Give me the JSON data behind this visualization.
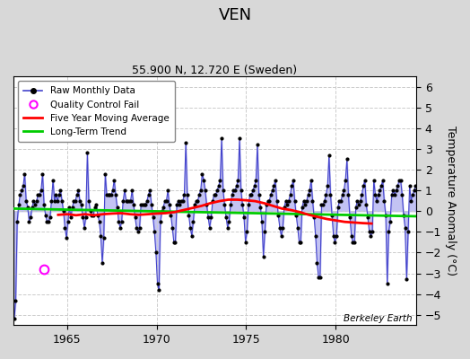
{
  "title": "VEN",
  "subtitle": "55.900 N, 12.720 E (Sweden)",
  "ylabel": "Temperature Anomaly (°C)",
  "watermark": "Berkeley Earth",
  "ylim": [
    -5.5,
    6.5
  ],
  "yticks": [
    -5,
    -4,
    -3,
    -2,
    -1,
    0,
    1,
    2,
    3,
    4,
    5,
    6
  ],
  "xlim": [
    1962.0,
    1984.5
  ],
  "xticks": [
    1965,
    1970,
    1975,
    1980
  ],
  "bg_color": "#d8d8d8",
  "plot_bg": "#ffffff",
  "raw_line_color": "#4444cc",
  "raw_fill_color": "#aaaaee",
  "raw_dot_color": "#000000",
  "moving_avg_color": "#ff0000",
  "trend_color": "#00cc00",
  "qc_color": "#ff00ff",
  "raw_monthly": [
    [
      1962.042,
      -5.2
    ],
    [
      1962.125,
      -4.3
    ],
    [
      1962.208,
      -0.5
    ],
    [
      1962.292,
      0.3
    ],
    [
      1962.375,
      0.8
    ],
    [
      1962.458,
      1.0
    ],
    [
      1962.542,
      1.2
    ],
    [
      1962.625,
      1.8
    ],
    [
      1962.708,
      0.5
    ],
    [
      1962.792,
      0.2
    ],
    [
      1962.875,
      -0.5
    ],
    [
      1962.958,
      -0.3
    ],
    [
      1963.042,
      0.2
    ],
    [
      1963.125,
      0.5
    ],
    [
      1963.208,
      0.3
    ],
    [
      1963.292,
      0.5
    ],
    [
      1963.375,
      0.8
    ],
    [
      1963.458,
      0.8
    ],
    [
      1963.542,
      1.0
    ],
    [
      1963.625,
      1.8
    ],
    [
      1963.708,
      0.3
    ],
    [
      1963.792,
      -0.2
    ],
    [
      1963.875,
      -0.5
    ],
    [
      1963.958,
      -0.5
    ],
    [
      1964.042,
      -0.3
    ],
    [
      1964.125,
      0.5
    ],
    [
      1964.208,
      1.5
    ],
    [
      1964.292,
      0.5
    ],
    [
      1964.375,
      0.8
    ],
    [
      1964.458,
      0.5
    ],
    [
      1964.542,
      0.8
    ],
    [
      1964.625,
      1.0
    ],
    [
      1964.708,
      0.5
    ],
    [
      1964.792,
      0.0
    ],
    [
      1964.875,
      -0.8
    ],
    [
      1964.958,
      -1.3
    ],
    [
      1965.042,
      -0.5
    ],
    [
      1965.125,
      0.2
    ],
    [
      1965.208,
      -0.3
    ],
    [
      1965.292,
      0.2
    ],
    [
      1965.375,
      0.5
    ],
    [
      1965.458,
      0.5
    ],
    [
      1965.542,
      0.8
    ],
    [
      1965.625,
      1.0
    ],
    [
      1965.708,
      0.5
    ],
    [
      1965.792,
      0.3
    ],
    [
      1965.875,
      -0.3
    ],
    [
      1965.958,
      -0.8
    ],
    [
      1966.042,
      -0.3
    ],
    [
      1966.125,
      2.8
    ],
    [
      1966.208,
      0.5
    ],
    [
      1966.292,
      0.0
    ],
    [
      1966.375,
      -0.2
    ],
    [
      1966.458,
      -0.2
    ],
    [
      1966.542,
      0.2
    ],
    [
      1966.625,
      0.3
    ],
    [
      1966.708,
      -0.2
    ],
    [
      1966.792,
      -0.5
    ],
    [
      1966.875,
      -1.2
    ],
    [
      1966.958,
      -2.5
    ],
    [
      1967.042,
      -1.3
    ],
    [
      1967.125,
      1.8
    ],
    [
      1967.208,
      0.8
    ],
    [
      1967.292,
      0.8
    ],
    [
      1967.375,
      0.8
    ],
    [
      1967.458,
      0.8
    ],
    [
      1967.542,
      1.0
    ],
    [
      1967.625,
      1.5
    ],
    [
      1967.708,
      0.8
    ],
    [
      1967.792,
      0.2
    ],
    [
      1967.875,
      -0.5
    ],
    [
      1967.958,
      -0.8
    ],
    [
      1968.042,
      -0.5
    ],
    [
      1968.125,
      0.5
    ],
    [
      1968.208,
      1.0
    ],
    [
      1968.292,
      0.5
    ],
    [
      1968.375,
      0.5
    ],
    [
      1968.458,
      0.5
    ],
    [
      1968.542,
      0.5
    ],
    [
      1968.625,
      1.0
    ],
    [
      1968.708,
      0.3
    ],
    [
      1968.792,
      -0.3
    ],
    [
      1968.875,
      -0.8
    ],
    [
      1968.958,
      -1.0
    ],
    [
      1969.042,
      -0.8
    ],
    [
      1969.125,
      0.3
    ],
    [
      1969.208,
      0.3
    ],
    [
      1969.292,
      0.3
    ],
    [
      1969.375,
      0.3
    ],
    [
      1969.458,
      0.5
    ],
    [
      1969.542,
      0.8
    ],
    [
      1969.625,
      1.0
    ],
    [
      1969.708,
      0.3
    ],
    [
      1969.792,
      -0.3
    ],
    [
      1969.875,
      -1.0
    ],
    [
      1969.958,
      -2.0
    ],
    [
      1970.042,
      -3.5
    ],
    [
      1970.125,
      -3.8
    ],
    [
      1970.208,
      -0.5
    ],
    [
      1970.292,
      0.0
    ],
    [
      1970.375,
      0.2
    ],
    [
      1970.458,
      0.5
    ],
    [
      1970.542,
      0.5
    ],
    [
      1970.625,
      1.0
    ],
    [
      1970.708,
      0.3
    ],
    [
      1970.792,
      -0.2
    ],
    [
      1970.875,
      -0.8
    ],
    [
      1970.958,
      -1.5
    ],
    [
      1971.042,
      -1.5
    ],
    [
      1971.125,
      0.3
    ],
    [
      1971.208,
      0.5
    ],
    [
      1971.292,
      0.3
    ],
    [
      1971.375,
      0.5
    ],
    [
      1971.458,
      0.5
    ],
    [
      1971.542,
      0.8
    ],
    [
      1971.625,
      3.3
    ],
    [
      1971.708,
      0.8
    ],
    [
      1971.792,
      -0.2
    ],
    [
      1971.875,
      -0.8
    ],
    [
      1971.958,
      -1.2
    ],
    [
      1972.042,
      -0.5
    ],
    [
      1972.125,
      0.3
    ],
    [
      1972.208,
      0.5
    ],
    [
      1972.292,
      0.5
    ],
    [
      1972.375,
      0.8
    ],
    [
      1972.458,
      1.0
    ],
    [
      1972.542,
      1.8
    ],
    [
      1972.625,
      1.5
    ],
    [
      1972.708,
      1.0
    ],
    [
      1972.792,
      0.3
    ],
    [
      1972.875,
      -0.3
    ],
    [
      1972.958,
      -0.8
    ],
    [
      1973.042,
      -0.3
    ],
    [
      1973.125,
      0.5
    ],
    [
      1973.208,
      0.8
    ],
    [
      1973.292,
      0.8
    ],
    [
      1973.375,
      1.0
    ],
    [
      1973.458,
      1.2
    ],
    [
      1973.542,
      1.5
    ],
    [
      1973.625,
      3.5
    ],
    [
      1973.708,
      1.0
    ],
    [
      1973.792,
      0.3
    ],
    [
      1973.875,
      -0.3
    ],
    [
      1973.958,
      -0.8
    ],
    [
      1974.042,
      -0.5
    ],
    [
      1974.125,
      0.3
    ],
    [
      1974.208,
      0.8
    ],
    [
      1974.292,
      1.0
    ],
    [
      1974.375,
      1.0
    ],
    [
      1974.458,
      1.2
    ],
    [
      1974.542,
      1.5
    ],
    [
      1974.625,
      3.5
    ],
    [
      1974.708,
      1.0
    ],
    [
      1974.792,
      0.3
    ],
    [
      1974.875,
      -0.3
    ],
    [
      1974.958,
      -1.5
    ],
    [
      1975.042,
      -1.0
    ],
    [
      1975.125,
      0.3
    ],
    [
      1975.208,
      0.8
    ],
    [
      1975.292,
      0.8
    ],
    [
      1975.375,
      1.0
    ],
    [
      1975.458,
      1.2
    ],
    [
      1975.542,
      1.5
    ],
    [
      1975.625,
      3.2
    ],
    [
      1975.708,
      0.8
    ],
    [
      1975.792,
      0.2
    ],
    [
      1975.875,
      -0.5
    ],
    [
      1975.958,
      -2.2
    ],
    [
      1976.042,
      -1.0
    ],
    [
      1976.125,
      0.3
    ],
    [
      1976.208,
      0.5
    ],
    [
      1976.292,
      0.5
    ],
    [
      1976.375,
      0.8
    ],
    [
      1976.458,
      1.0
    ],
    [
      1976.542,
      1.2
    ],
    [
      1976.625,
      1.5
    ],
    [
      1976.708,
      0.5
    ],
    [
      1976.792,
      -0.2
    ],
    [
      1976.875,
      -0.8
    ],
    [
      1976.958,
      -1.2
    ],
    [
      1977.042,
      -0.8
    ],
    [
      1977.125,
      0.2
    ],
    [
      1977.208,
      0.5
    ],
    [
      1977.292,
      0.3
    ],
    [
      1977.375,
      0.5
    ],
    [
      1977.458,
      0.8
    ],
    [
      1977.542,
      1.2
    ],
    [
      1977.625,
      1.5
    ],
    [
      1977.708,
      0.5
    ],
    [
      1977.792,
      -0.2
    ],
    [
      1977.875,
      -0.8
    ],
    [
      1977.958,
      -1.5
    ],
    [
      1978.042,
      -1.5
    ],
    [
      1978.125,
      0.2
    ],
    [
      1978.208,
      0.5
    ],
    [
      1978.292,
      0.3
    ],
    [
      1978.375,
      0.5
    ],
    [
      1978.458,
      0.8
    ],
    [
      1978.542,
      1.0
    ],
    [
      1978.625,
      1.5
    ],
    [
      1978.708,
      0.5
    ],
    [
      1978.792,
      -0.3
    ],
    [
      1978.875,
      -1.2
    ],
    [
      1978.958,
      -2.5
    ],
    [
      1979.042,
      -3.2
    ],
    [
      1979.125,
      -3.2
    ],
    [
      1979.208,
      0.3
    ],
    [
      1979.292,
      0.3
    ],
    [
      1979.375,
      0.5
    ],
    [
      1979.458,
      0.8
    ],
    [
      1979.542,
      1.2
    ],
    [
      1979.625,
      2.7
    ],
    [
      1979.708,
      0.8
    ],
    [
      1979.792,
      -0.2
    ],
    [
      1979.875,
      -1.2
    ],
    [
      1979.958,
      -1.5
    ],
    [
      1980.042,
      -1.2
    ],
    [
      1980.125,
      0.2
    ],
    [
      1980.208,
      0.5
    ],
    [
      1980.292,
      0.5
    ],
    [
      1980.375,
      0.8
    ],
    [
      1980.458,
      1.0
    ],
    [
      1980.542,
      1.5
    ],
    [
      1980.625,
      2.5
    ],
    [
      1980.708,
      0.8
    ],
    [
      1980.792,
      -0.3
    ],
    [
      1980.875,
      -1.2
    ],
    [
      1980.958,
      -1.5
    ],
    [
      1981.042,
      -1.5
    ],
    [
      1981.125,
      0.2
    ],
    [
      1981.208,
      0.5
    ],
    [
      1981.292,
      0.3
    ],
    [
      1981.375,
      0.5
    ],
    [
      1981.458,
      0.8
    ],
    [
      1981.542,
      1.2
    ],
    [
      1981.625,
      1.5
    ],
    [
      1981.708,
      0.3
    ],
    [
      1981.792,
      -0.3
    ],
    [
      1981.875,
      -1.0
    ],
    [
      1981.958,
      -1.2
    ],
    [
      1982.042,
      -1.0
    ],
    [
      1982.125,
      1.5
    ],
    [
      1982.208,
      0.8
    ],
    [
      1982.292,
      0.5
    ],
    [
      1982.375,
      0.8
    ],
    [
      1982.458,
      1.0
    ],
    [
      1982.542,
      1.2
    ],
    [
      1982.625,
      1.5
    ],
    [
      1982.708,
      0.5
    ],
    [
      1982.792,
      -0.2
    ],
    [
      1982.875,
      -3.5
    ],
    [
      1982.958,
      -1.0
    ],
    [
      1983.042,
      -0.5
    ],
    [
      1983.125,
      0.8
    ],
    [
      1983.208,
      1.0
    ],
    [
      1983.292,
      0.8
    ],
    [
      1983.375,
      1.0
    ],
    [
      1983.458,
      1.2
    ],
    [
      1983.542,
      1.5
    ],
    [
      1983.625,
      1.5
    ],
    [
      1983.708,
      0.8
    ],
    [
      1983.792,
      -0.2
    ],
    [
      1983.875,
      -0.8
    ],
    [
      1983.958,
      -3.3
    ],
    [
      1984.042,
      -1.0
    ],
    [
      1984.125,
      1.2
    ],
    [
      1984.208,
      0.5
    ],
    [
      1984.292,
      0.8
    ],
    [
      1984.375,
      1.0
    ],
    [
      1984.458,
      1.2
    ]
  ],
  "qc_fail_points": [
    [
      1963.708,
      -2.8
    ]
  ],
  "moving_avg": [
    [
      1964.5,
      -0.18
    ],
    [
      1965.0,
      -0.15
    ],
    [
      1965.5,
      -0.2
    ],
    [
      1966.0,
      -0.15
    ],
    [
      1966.5,
      -0.2
    ],
    [
      1967.0,
      -0.15
    ],
    [
      1967.5,
      -0.12
    ],
    [
      1968.0,
      -0.1
    ],
    [
      1968.5,
      -0.15
    ],
    [
      1969.0,
      -0.18
    ],
    [
      1969.5,
      -0.15
    ],
    [
      1970.0,
      -0.12
    ],
    [
      1970.5,
      -0.1
    ],
    [
      1971.0,
      -0.05
    ],
    [
      1971.5,
      0.05
    ],
    [
      1972.0,
      0.15
    ],
    [
      1972.5,
      0.25
    ],
    [
      1973.0,
      0.38
    ],
    [
      1973.5,
      0.48
    ],
    [
      1974.0,
      0.55
    ],
    [
      1974.5,
      0.55
    ],
    [
      1975.0,
      0.52
    ],
    [
      1975.5,
      0.48
    ],
    [
      1976.0,
      0.38
    ],
    [
      1976.5,
      0.25
    ],
    [
      1977.0,
      0.12
    ],
    [
      1977.5,
      0.05
    ],
    [
      1978.0,
      -0.05
    ],
    [
      1978.5,
      -0.18
    ],
    [
      1979.0,
      -0.28
    ],
    [
      1979.5,
      -0.38
    ],
    [
      1980.0,
      -0.45
    ],
    [
      1980.5,
      -0.52
    ],
    [
      1981.0,
      -0.55
    ],
    [
      1981.5,
      -0.58
    ],
    [
      1982.0,
      -0.6
    ]
  ],
  "trend_line": [
    [
      1962.0,
      0.12
    ],
    [
      1984.5,
      -0.25
    ]
  ]
}
